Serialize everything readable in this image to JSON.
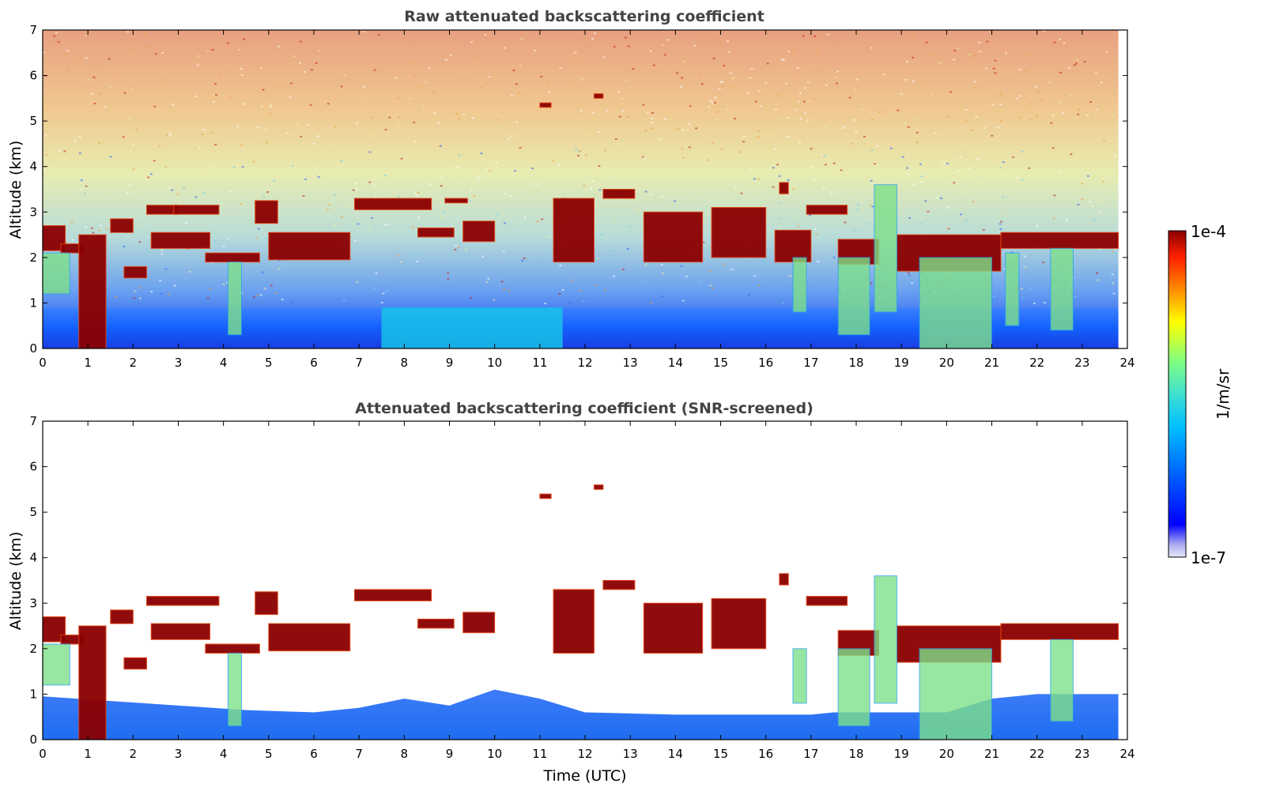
{
  "chart_data": [
    {
      "type": "heatmap",
      "title": "Raw attenuated backscattering coefficient",
      "xlabel": "",
      "ylabel": "Altitude (km)",
      "xlim": [
        0,
        24
      ],
      "ylim": [
        0,
        7
      ],
      "xticks": [
        "0",
        "1",
        "2",
        "3",
        "4",
        "5",
        "6",
        "7",
        "8",
        "9",
        "10",
        "11",
        "12",
        "13",
        "14",
        "15",
        "16",
        "17",
        "18",
        "19",
        "20",
        "21",
        "22",
        "23",
        "24"
      ],
      "yticks": [
        "0",
        "1",
        "2",
        "3",
        "4",
        "5",
        "6",
        "7"
      ],
      "data_end_time": 23.8,
      "noise_background": "high",
      "features": [
        {
          "start": 0.0,
          "end": 0.5,
          "alt_bottom": 2.15,
          "alt_top": 2.7,
          "level": "high"
        },
        {
          "start": 0.4,
          "end": 0.9,
          "alt_bottom": 2.1,
          "alt_top": 2.3,
          "level": "high"
        },
        {
          "start": 0.8,
          "end": 1.4,
          "alt_bottom": 0.0,
          "alt_top": 2.5,
          "level": "high"
        },
        {
          "start": 1.5,
          "end": 2.0,
          "alt_bottom": 2.55,
          "alt_top": 2.85,
          "level": "high"
        },
        {
          "start": 1.8,
          "end": 2.3,
          "alt_bottom": 1.55,
          "alt_top": 1.8,
          "level": "high"
        },
        {
          "start": 2.3,
          "end": 3.0,
          "alt_bottom": 2.95,
          "alt_top": 3.15,
          "level": "high"
        },
        {
          "start": 2.9,
          "end": 3.9,
          "alt_bottom": 2.95,
          "alt_top": 3.15,
          "level": "high"
        },
        {
          "start": 2.4,
          "end": 3.7,
          "alt_bottom": 2.2,
          "alt_top": 2.55,
          "level": "high"
        },
        {
          "start": 3.6,
          "end": 4.8,
          "alt_bottom": 1.9,
          "alt_top": 2.1,
          "level": "high"
        },
        {
          "start": 4.7,
          "end": 5.2,
          "alt_bottom": 2.75,
          "alt_top": 3.25,
          "level": "high"
        },
        {
          "start": 5.0,
          "end": 6.8,
          "alt_bottom": 1.95,
          "alt_top": 2.55,
          "level": "high"
        },
        {
          "start": 6.9,
          "end": 8.6,
          "alt_bottom": 3.05,
          "alt_top": 3.3,
          "level": "high"
        },
        {
          "start": 8.9,
          "end": 9.4,
          "alt_bottom": 3.2,
          "alt_top": 3.3,
          "level": "high"
        },
        {
          "start": 8.3,
          "end": 9.1,
          "alt_bottom": 2.45,
          "alt_top": 2.65,
          "level": "high"
        },
        {
          "start": 9.3,
          "end": 10.0,
          "alt_bottom": 2.35,
          "alt_top": 2.8,
          "level": "high"
        },
        {
          "start": 11.0,
          "end": 11.25,
          "alt_bottom": 5.3,
          "alt_top": 5.4,
          "level": "high"
        },
        {
          "start": 12.2,
          "end": 12.4,
          "alt_bottom": 5.5,
          "alt_top": 5.6,
          "level": "high"
        },
        {
          "start": 11.3,
          "end": 12.2,
          "alt_bottom": 1.9,
          "alt_top": 3.3,
          "level": "high"
        },
        {
          "start": 12.4,
          "end": 13.1,
          "alt_bottom": 3.3,
          "alt_top": 3.5,
          "level": "high"
        },
        {
          "start": 13.3,
          "end": 14.6,
          "alt_bottom": 1.9,
          "alt_top": 3.0,
          "level": "high"
        },
        {
          "start": 14.8,
          "end": 16.0,
          "alt_bottom": 2.0,
          "alt_top": 3.1,
          "level": "high"
        },
        {
          "start": 16.3,
          "end": 16.5,
          "alt_bottom": 3.4,
          "alt_top": 3.65,
          "level": "high"
        },
        {
          "start": 16.2,
          "end": 17.0,
          "alt_bottom": 1.9,
          "alt_top": 2.6,
          "level": "high"
        },
        {
          "start": 16.9,
          "end": 17.8,
          "alt_bottom": 2.95,
          "alt_top": 3.15,
          "level": "high"
        },
        {
          "start": 17.6,
          "end": 18.5,
          "alt_bottom": 1.85,
          "alt_top": 2.4,
          "level": "high"
        },
        {
          "start": 18.9,
          "end": 21.2,
          "alt_bottom": 1.7,
          "alt_top": 2.5,
          "level": "high"
        },
        {
          "start": 21.2,
          "end": 23.8,
          "alt_bottom": 2.2,
          "alt_top": 2.55,
          "level": "high"
        },
        {
          "start": 17.6,
          "end": 18.3,
          "alt_bottom": 0.3,
          "alt_top": 2.0,
          "level": "medium"
        },
        {
          "start": 18.4,
          "end": 18.9,
          "alt_bottom": 0.8,
          "alt_top": 3.6,
          "level": "medium"
        },
        {
          "start": 19.4,
          "end": 21.0,
          "alt_bottom": 0.0,
          "alt_top": 2.0,
          "level": "medium"
        },
        {
          "start": 21.3,
          "end": 21.6,
          "alt_bottom": 0.5,
          "alt_top": 2.1,
          "level": "medium"
        },
        {
          "start": 22.3,
          "end": 22.8,
          "alt_bottom": 0.4,
          "alt_top": 2.2,
          "level": "medium"
        },
        {
          "start": 16.6,
          "end": 16.9,
          "alt_bottom": 0.8,
          "alt_top": 2.0,
          "level": "medium"
        },
        {
          "start": 4.1,
          "end": 4.4,
          "alt_bottom": 0.3,
          "alt_top": 1.9,
          "level": "medium"
        },
        {
          "start": 0.0,
          "end": 0.6,
          "alt_bottom": 1.2,
          "alt_top": 2.1,
          "level": "medium"
        },
        {
          "start": 7.5,
          "end": 11.5,
          "alt_bottom": 0.0,
          "alt_top": 0.9,
          "level": "low"
        }
      ]
    },
    {
      "type": "heatmap",
      "title": "Attenuated backscattering coefficient (SNR-screened)",
      "xlabel": "Time (UTC)",
      "ylabel": "Altitude (km)",
      "xlim": [
        0,
        24
      ],
      "ylim": [
        0,
        7
      ],
      "xticks": [
        "0",
        "1",
        "2",
        "3",
        "4",
        "5",
        "6",
        "7",
        "8",
        "9",
        "10",
        "11",
        "12",
        "13",
        "14",
        "15",
        "16",
        "17",
        "18",
        "19",
        "20",
        "21",
        "22",
        "23",
        "24"
      ],
      "yticks": [
        "0",
        "1",
        "2",
        "3",
        "4",
        "5",
        "6",
        "7"
      ],
      "data_end_time": 23.8,
      "noise_background": "screened (white)",
      "features": [
        {
          "start": 0.0,
          "end": 0.5,
          "alt_bottom": 2.15,
          "alt_top": 2.7,
          "level": "high"
        },
        {
          "start": 0.4,
          "end": 0.9,
          "alt_bottom": 2.1,
          "alt_top": 2.3,
          "level": "high"
        },
        {
          "start": 0.8,
          "end": 1.4,
          "alt_bottom": 0.0,
          "alt_top": 2.5,
          "level": "high"
        },
        {
          "start": 1.5,
          "end": 2.0,
          "alt_bottom": 2.55,
          "alt_top": 2.85,
          "level": "high"
        },
        {
          "start": 1.8,
          "end": 2.3,
          "alt_bottom": 1.55,
          "alt_top": 1.8,
          "level": "high"
        },
        {
          "start": 2.3,
          "end": 3.9,
          "alt_bottom": 2.95,
          "alt_top": 3.15,
          "level": "high"
        },
        {
          "start": 2.4,
          "end": 3.7,
          "alt_bottom": 2.2,
          "alt_top": 2.55,
          "level": "high"
        },
        {
          "start": 3.6,
          "end": 4.8,
          "alt_bottom": 1.9,
          "alt_top": 2.1,
          "level": "high"
        },
        {
          "start": 4.7,
          "end": 5.2,
          "alt_bottom": 2.75,
          "alt_top": 3.25,
          "level": "high"
        },
        {
          "start": 5.0,
          "end": 6.8,
          "alt_bottom": 1.95,
          "alt_top": 2.55,
          "level": "high"
        },
        {
          "start": 6.9,
          "end": 8.6,
          "alt_bottom": 3.05,
          "alt_top": 3.3,
          "level": "high"
        },
        {
          "start": 8.3,
          "end": 9.1,
          "alt_bottom": 2.45,
          "alt_top": 2.65,
          "level": "high"
        },
        {
          "start": 9.3,
          "end": 10.0,
          "alt_bottom": 2.35,
          "alt_top": 2.8,
          "level": "high"
        },
        {
          "start": 11.0,
          "end": 11.25,
          "alt_bottom": 5.3,
          "alt_top": 5.4,
          "level": "high"
        },
        {
          "start": 12.2,
          "end": 12.4,
          "alt_bottom": 5.5,
          "alt_top": 5.6,
          "level": "high"
        },
        {
          "start": 11.3,
          "end": 12.2,
          "alt_bottom": 1.9,
          "alt_top": 3.3,
          "level": "high"
        },
        {
          "start": 12.4,
          "end": 13.1,
          "alt_bottom": 3.3,
          "alt_top": 3.5,
          "level": "high"
        },
        {
          "start": 13.3,
          "end": 14.6,
          "alt_bottom": 1.9,
          "alt_top": 3.0,
          "level": "high"
        },
        {
          "start": 14.8,
          "end": 16.0,
          "alt_bottom": 2.0,
          "alt_top": 3.1,
          "level": "high"
        },
        {
          "start": 16.3,
          "end": 16.5,
          "alt_bottom": 3.4,
          "alt_top": 3.65,
          "level": "high"
        },
        {
          "start": 16.9,
          "end": 17.8,
          "alt_bottom": 2.95,
          "alt_top": 3.15,
          "level": "high"
        },
        {
          "start": 17.6,
          "end": 18.5,
          "alt_bottom": 1.85,
          "alt_top": 2.4,
          "level": "high"
        },
        {
          "start": 18.9,
          "end": 21.2,
          "alt_bottom": 1.7,
          "alt_top": 2.5,
          "level": "high"
        },
        {
          "start": 21.2,
          "end": 23.8,
          "alt_bottom": 2.2,
          "alt_top": 2.55,
          "level": "high"
        },
        {
          "start": 17.6,
          "end": 18.3,
          "alt_bottom": 0.3,
          "alt_top": 2.0,
          "level": "medium"
        },
        {
          "start": 18.4,
          "end": 18.9,
          "alt_bottom": 0.8,
          "alt_top": 3.6,
          "level": "medium"
        },
        {
          "start": 19.4,
          "end": 21.0,
          "alt_bottom": 0.0,
          "alt_top": 2.0,
          "level": "medium"
        },
        {
          "start": 22.3,
          "end": 22.8,
          "alt_bottom": 0.4,
          "alt_top": 2.2,
          "level": "medium"
        },
        {
          "start": 16.6,
          "end": 16.9,
          "alt_bottom": 0.8,
          "alt_top": 2.0,
          "level": "medium"
        },
        {
          "start": 4.1,
          "end": 4.4,
          "alt_bottom": 0.3,
          "alt_top": 1.9,
          "level": "medium"
        },
        {
          "start": 0.0,
          "end": 0.6,
          "alt_bottom": 1.2,
          "alt_top": 2.1,
          "level": "medium"
        }
      ]
    }
  ],
  "colorbar": {
    "label": "1/m/sr",
    "max_label": "1e-4",
    "min_label": "1e-7",
    "colors": [
      "#e8e8f8",
      "#a8a8f0",
      "#0000ff",
      "#0060ff",
      "#00c0ff",
      "#40e0d0",
      "#80ff80",
      "#ffff00",
      "#ff8000",
      "#ff2000",
      "#8b0000"
    ]
  }
}
